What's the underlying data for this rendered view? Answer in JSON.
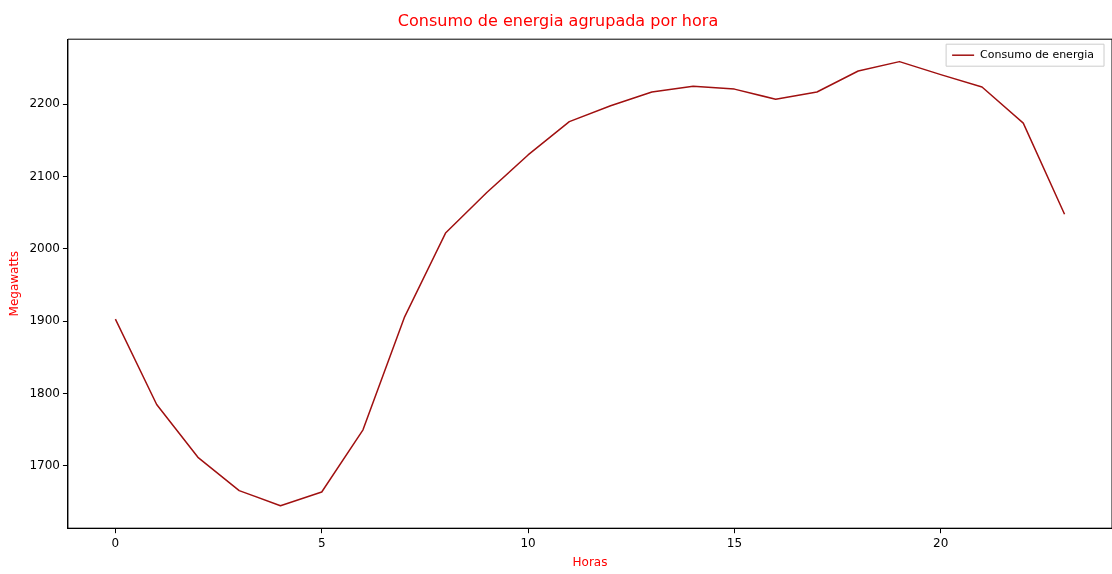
{
  "chart_data": {
    "type": "line",
    "title": "Consumo de energia agrupada por hora",
    "xlabel": "Horas",
    "ylabel": "Megawatts",
    "x": [
      0,
      1,
      2,
      3,
      4,
      5,
      6,
      7,
      8,
      9,
      10,
      11,
      12,
      13,
      14,
      15,
      16,
      17,
      18,
      19,
      20,
      21,
      22,
      23
    ],
    "series": [
      {
        "name": "Consumo de energia",
        "color": "#a01010",
        "values": [
          1903,
          1785,
          1712,
          1666,
          1645,
          1664,
          1750,
          1905,
          2022,
          2078,
          2130,
          2176,
          2198,
          2217,
          2225,
          2221,
          2207,
          2217,
          2246,
          2259,
          2241,
          2224,
          2174,
          2048
        ]
      }
    ],
    "xlim": [
      -1.15,
      24.15
    ],
    "xticks": [
      0,
      5,
      10,
      15,
      20
    ],
    "ylim": [
      1614,
      2290
    ],
    "yticks": [
      1700,
      1800,
      1900,
      2000,
      2100,
      2200
    ],
    "grid": false,
    "legend": "top right",
    "marker": "none",
    "line_style": "solid"
  }
}
